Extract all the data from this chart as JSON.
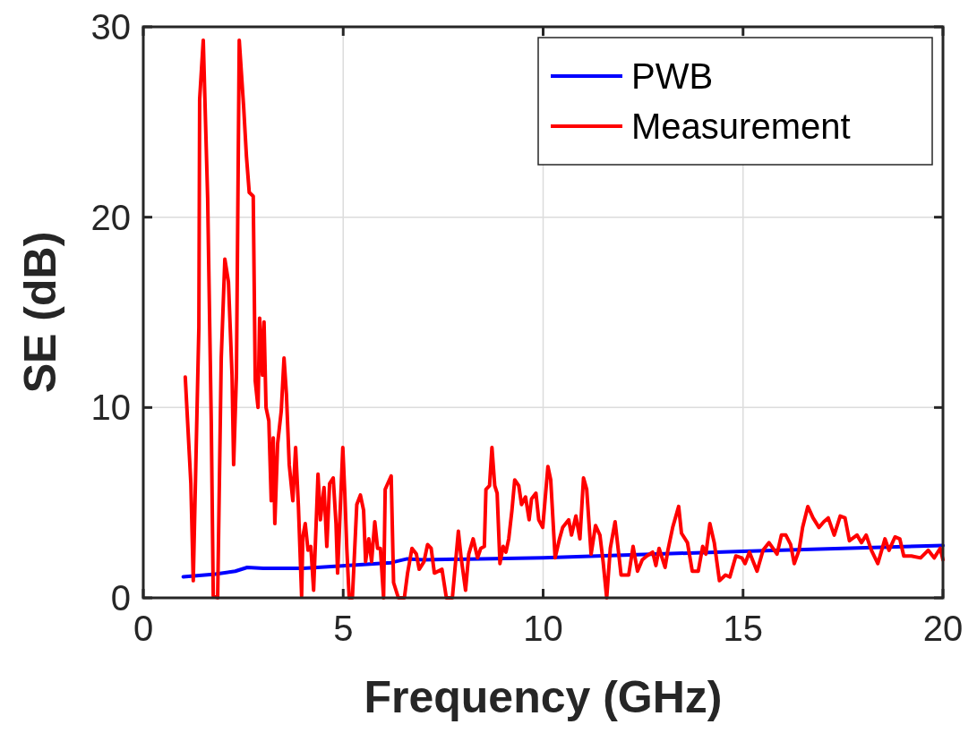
{
  "chart_data": {
    "type": "line",
    "xlabel": "Frequency (GHz)",
    "ylabel": "SE (dB)",
    "xlim": [
      0,
      20
    ],
    "ylim": [
      0,
      30
    ],
    "xticks": [
      0,
      5,
      10,
      15,
      20
    ],
    "yticks": [
      0,
      10,
      20,
      30
    ],
    "grid": true,
    "legend": "top right",
    "line_style": "solid",
    "series": [
      {
        "name": "PWB",
        "color": "#0000ff",
        "x": [
          1,
          1.8,
          2.3,
          2.6,
          3.0,
          4,
          5.5,
          6.2,
          6.6,
          7,
          10,
          15,
          20
        ],
        "values": [
          1.1,
          1.25,
          1.4,
          1.6,
          1.55,
          1.55,
          1.75,
          1.85,
          2.05,
          2.0,
          2.1,
          2.45,
          2.75
        ]
      },
      {
        "name": "Measurement",
        "color": "#ff0000",
        "x": [
          1.05,
          1.19,
          1.25,
          1.39,
          1.41,
          1.5,
          1.61,
          1.7,
          1.75,
          1.86,
          1.95,
          2.04,
          2.13,
          2.22,
          2.26,
          2.33,
          2.4,
          2.51,
          2.58,
          2.65,
          2.75,
          2.8,
          2.87,
          2.91,
          2.98,
          3.02,
          3.07,
          3.14,
          3.2,
          3.25,
          3.29,
          3.36,
          3.45,
          3.52,
          3.58,
          3.65,
          3.74,
          3.81,
          3.88,
          3.96,
          3.99,
          4.05,
          4.12,
          4.19,
          4.26,
          4.37,
          4.43,
          4.52,
          4.59,
          4.66,
          4.75,
          4.82,
          4.86,
          4.99,
          5.04,
          5.09,
          5.15,
          5.23,
          5.34,
          5.43,
          5.51,
          5.56,
          5.64,
          5.71,
          5.79,
          5.86,
          5.93,
          6.01,
          6.05,
          6.2,
          6.26,
          6.38,
          6.53,
          6.61,
          6.72,
          6.83,
          6.9,
          7.02,
          7.11,
          7.2,
          7.28,
          7.47,
          7.58,
          7.73,
          7.88,
          7.95,
          8.06,
          8.14,
          8.25,
          8.36,
          8.44,
          8.53,
          8.57,
          8.66,
          8.72,
          8.79,
          8.85,
          8.92,
          9.0,
          9.07,
          9.14,
          9.22,
          9.29,
          9.39,
          9.46,
          9.56,
          9.65,
          9.71,
          9.82,
          9.89,
          9.99,
          10.12,
          10.19,
          10.3,
          10.41,
          10.49,
          10.64,
          10.71,
          10.82,
          10.92,
          11.01,
          11.09,
          11.2,
          11.31,
          11.42,
          11.5,
          11.59,
          11.68,
          11.8,
          11.95,
          12.14,
          12.25,
          12.36,
          12.48,
          12.59,
          12.74,
          12.82,
          12.9,
          13.05,
          13.12,
          13.24,
          13.39,
          13.46,
          13.61,
          13.73,
          13.88,
          13.99,
          14.07,
          14.17,
          14.28,
          14.41,
          14.56,
          14.67,
          14.82,
          14.97,
          15.05,
          15.16,
          15.35,
          15.5,
          15.65,
          15.85,
          15.96,
          16.07,
          16.19,
          16.28,
          16.4,
          16.49,
          16.62,
          16.75,
          16.9,
          17.02,
          17.13,
          17.28,
          17.43,
          17.55,
          17.66,
          17.85,
          17.96,
          18.08,
          18.21,
          18.37,
          18.55,
          18.65,
          18.8,
          18.92,
          19.02,
          19.21,
          19.44,
          19.63,
          19.78,
          19.93,
          20
        ],
        "values": [
          11.6,
          6.0,
          0.9,
          14.2,
          26.2,
          29.3,
          21,
          9.3,
          0.1,
          0,
          12.6,
          17.8,
          16.6,
          11.7,
          7,
          11.7,
          29.3,
          25.8,
          23.2,
          21.3,
          21.1,
          11.4,
          10,
          14.7,
          11.7,
          14.5,
          10,
          9.3,
          5.1,
          8.4,
          3.9,
          8.1,
          9.8,
          12.6,
          10.7,
          7,
          5.1,
          7.9,
          4.8,
          0.1,
          3.2,
          3.9,
          2.5,
          2.7,
          0.4,
          6.5,
          4.1,
          5.8,
          2.7,
          6,
          6.3,
          3.9,
          1.3,
          7.9,
          5.5,
          2.6,
          0,
          0,
          4.9,
          5.4,
          4.6,
          1.9,
          3.1,
          1.9,
          4.0,
          2.6,
          2.6,
          0,
          5.7,
          6.4,
          0.8,
          0,
          0,
          1.3,
          2.6,
          2.3,
          1.5,
          1.9,
          2.8,
          2.6,
          1.3,
          1.5,
          0,
          0,
          3.5,
          2.1,
          0.4,
          2.3,
          3.1,
          2.1,
          2.6,
          2.7,
          5.7,
          5.9,
          7.9,
          5.9,
          5.5,
          1.8,
          2.7,
          2.4,
          3.1,
          4.6,
          6.2,
          5.9,
          4.9,
          5.3,
          4.1,
          5.2,
          5.5,
          4.1,
          3.7,
          6.9,
          6.2,
          2.1,
          3.1,
          3.7,
          4.1,
          3.3,
          4.3,
          3.1,
          6.3,
          5.7,
          2.3,
          3.8,
          3.3,
          1.9,
          0,
          2.6,
          4.0,
          1.2,
          1.2,
          2.7,
          1.4,
          2.0,
          2.2,
          2.4,
          1.7,
          2.6,
          1.6,
          2.5,
          3.7,
          4.8,
          3.4,
          2.9,
          1.4,
          1.4,
          2.7,
          2.3,
          3.9,
          2.9,
          0.9,
          1.2,
          1.1,
          2.2,
          2.1,
          1.8,
          2.4,
          1.4,
          2.5,
          2.9,
          2.3,
          3.3,
          3.3,
          2.8,
          1.8,
          2.5,
          3.7,
          4.8,
          4.2,
          3.7,
          4.0,
          4.2,
          3.3,
          4.3,
          4.2,
          3.0,
          3.3,
          2.9,
          3.3,
          2.5,
          1.8,
          3.1,
          2.5,
          3.2,
          3.1,
          2.2,
          2.2,
          2.1,
          2.5,
          2.1,
          2.6,
          2.0
        ]
      }
    ]
  }
}
